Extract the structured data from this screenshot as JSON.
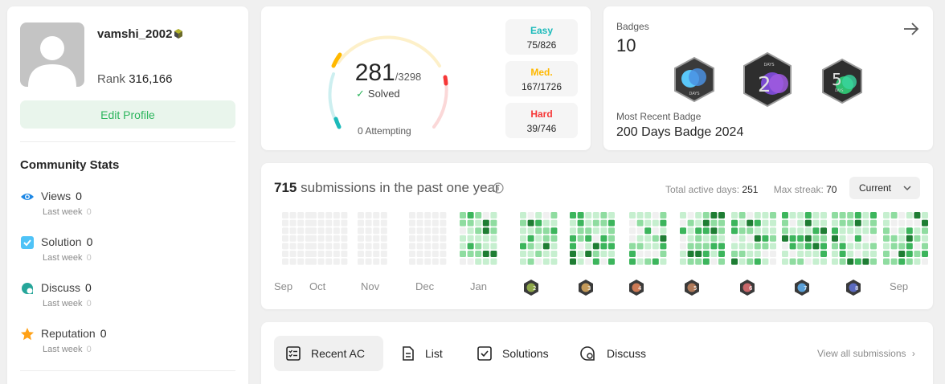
{
  "profile": {
    "username": "vamshi_2002",
    "rank_label": "Rank",
    "rank_value": "316,166",
    "edit_button": "Edit Profile"
  },
  "community": {
    "title": "Community Stats",
    "stats": [
      {
        "label": "Views",
        "value": "0",
        "sub_label": "Last week",
        "sub_value": "0",
        "icon": "eye-icon",
        "color": "#1e88e5"
      },
      {
        "label": "Solution",
        "value": "0",
        "sub_label": "Last week",
        "sub_value": "0",
        "icon": "check-square-icon",
        "color": "#29b6f6"
      },
      {
        "label": "Discuss",
        "value": "0",
        "sub_label": "Last week",
        "sub_value": "0",
        "icon": "discuss-icon",
        "color": "#26a69a"
      },
      {
        "label": "Reputation",
        "value": "0",
        "sub_label": "Last week",
        "sub_value": "0",
        "icon": "star-icon",
        "color": "#ffa116"
      }
    ]
  },
  "solved": {
    "count": "281",
    "total": "/3298",
    "label": "Solved",
    "attempting": "0 Attempting",
    "difficulties": [
      {
        "label": "Easy",
        "value": "75/826",
        "color": "#1cbaba"
      },
      {
        "label": "Med.",
        "value": "167/1726",
        "color": "#ffb800"
      },
      {
        "label": "Hard",
        "value": "39/746",
        "color": "#f63737"
      }
    ]
  },
  "badges": {
    "label": "Badges",
    "count": "10",
    "recent_label": "Most Recent Badge",
    "recent_name": "200 Days Badge 2024",
    "items": [
      {
        "name": "days-badge-icon",
        "text": "DAYS"
      },
      {
        "name": "200-days-badge-icon",
        "text": "200",
        "sub": "DAYS"
      },
      {
        "name": "50-days-badge-icon",
        "text": "50",
        "sub": "DAYS"
      }
    ]
  },
  "heatmap": {
    "count": "715",
    "text": "submissions in the past one year",
    "active_label": "Total active days:",
    "active_value": "251",
    "streak_label": "Max streak:",
    "streak_value": "70",
    "dropdown": "Current",
    "months": [
      "Sep",
      "Oct",
      "Nov",
      "Dec",
      "Jan",
      "Sep"
    ],
    "month_badges": [
      "2",
      "3",
      "4",
      "5",
      "6",
      "7",
      "8"
    ],
    "month_badge_colors": [
      "#8fa84a",
      "#c49a5a",
      "#cd7a55",
      "#b07a5a",
      "#c9676a",
      "#5aa0d8",
      "#5c6bc0"
    ]
  },
  "tabs": {
    "items": [
      {
        "label": "Recent AC",
        "icon": "recent-ac-icon"
      },
      {
        "label": "List",
        "icon": "list-icon"
      },
      {
        "label": "Solutions",
        "icon": "solutions-icon"
      },
      {
        "label": "Discuss",
        "icon": "discuss-tab-icon"
      }
    ],
    "view_all": "View all submissions"
  }
}
